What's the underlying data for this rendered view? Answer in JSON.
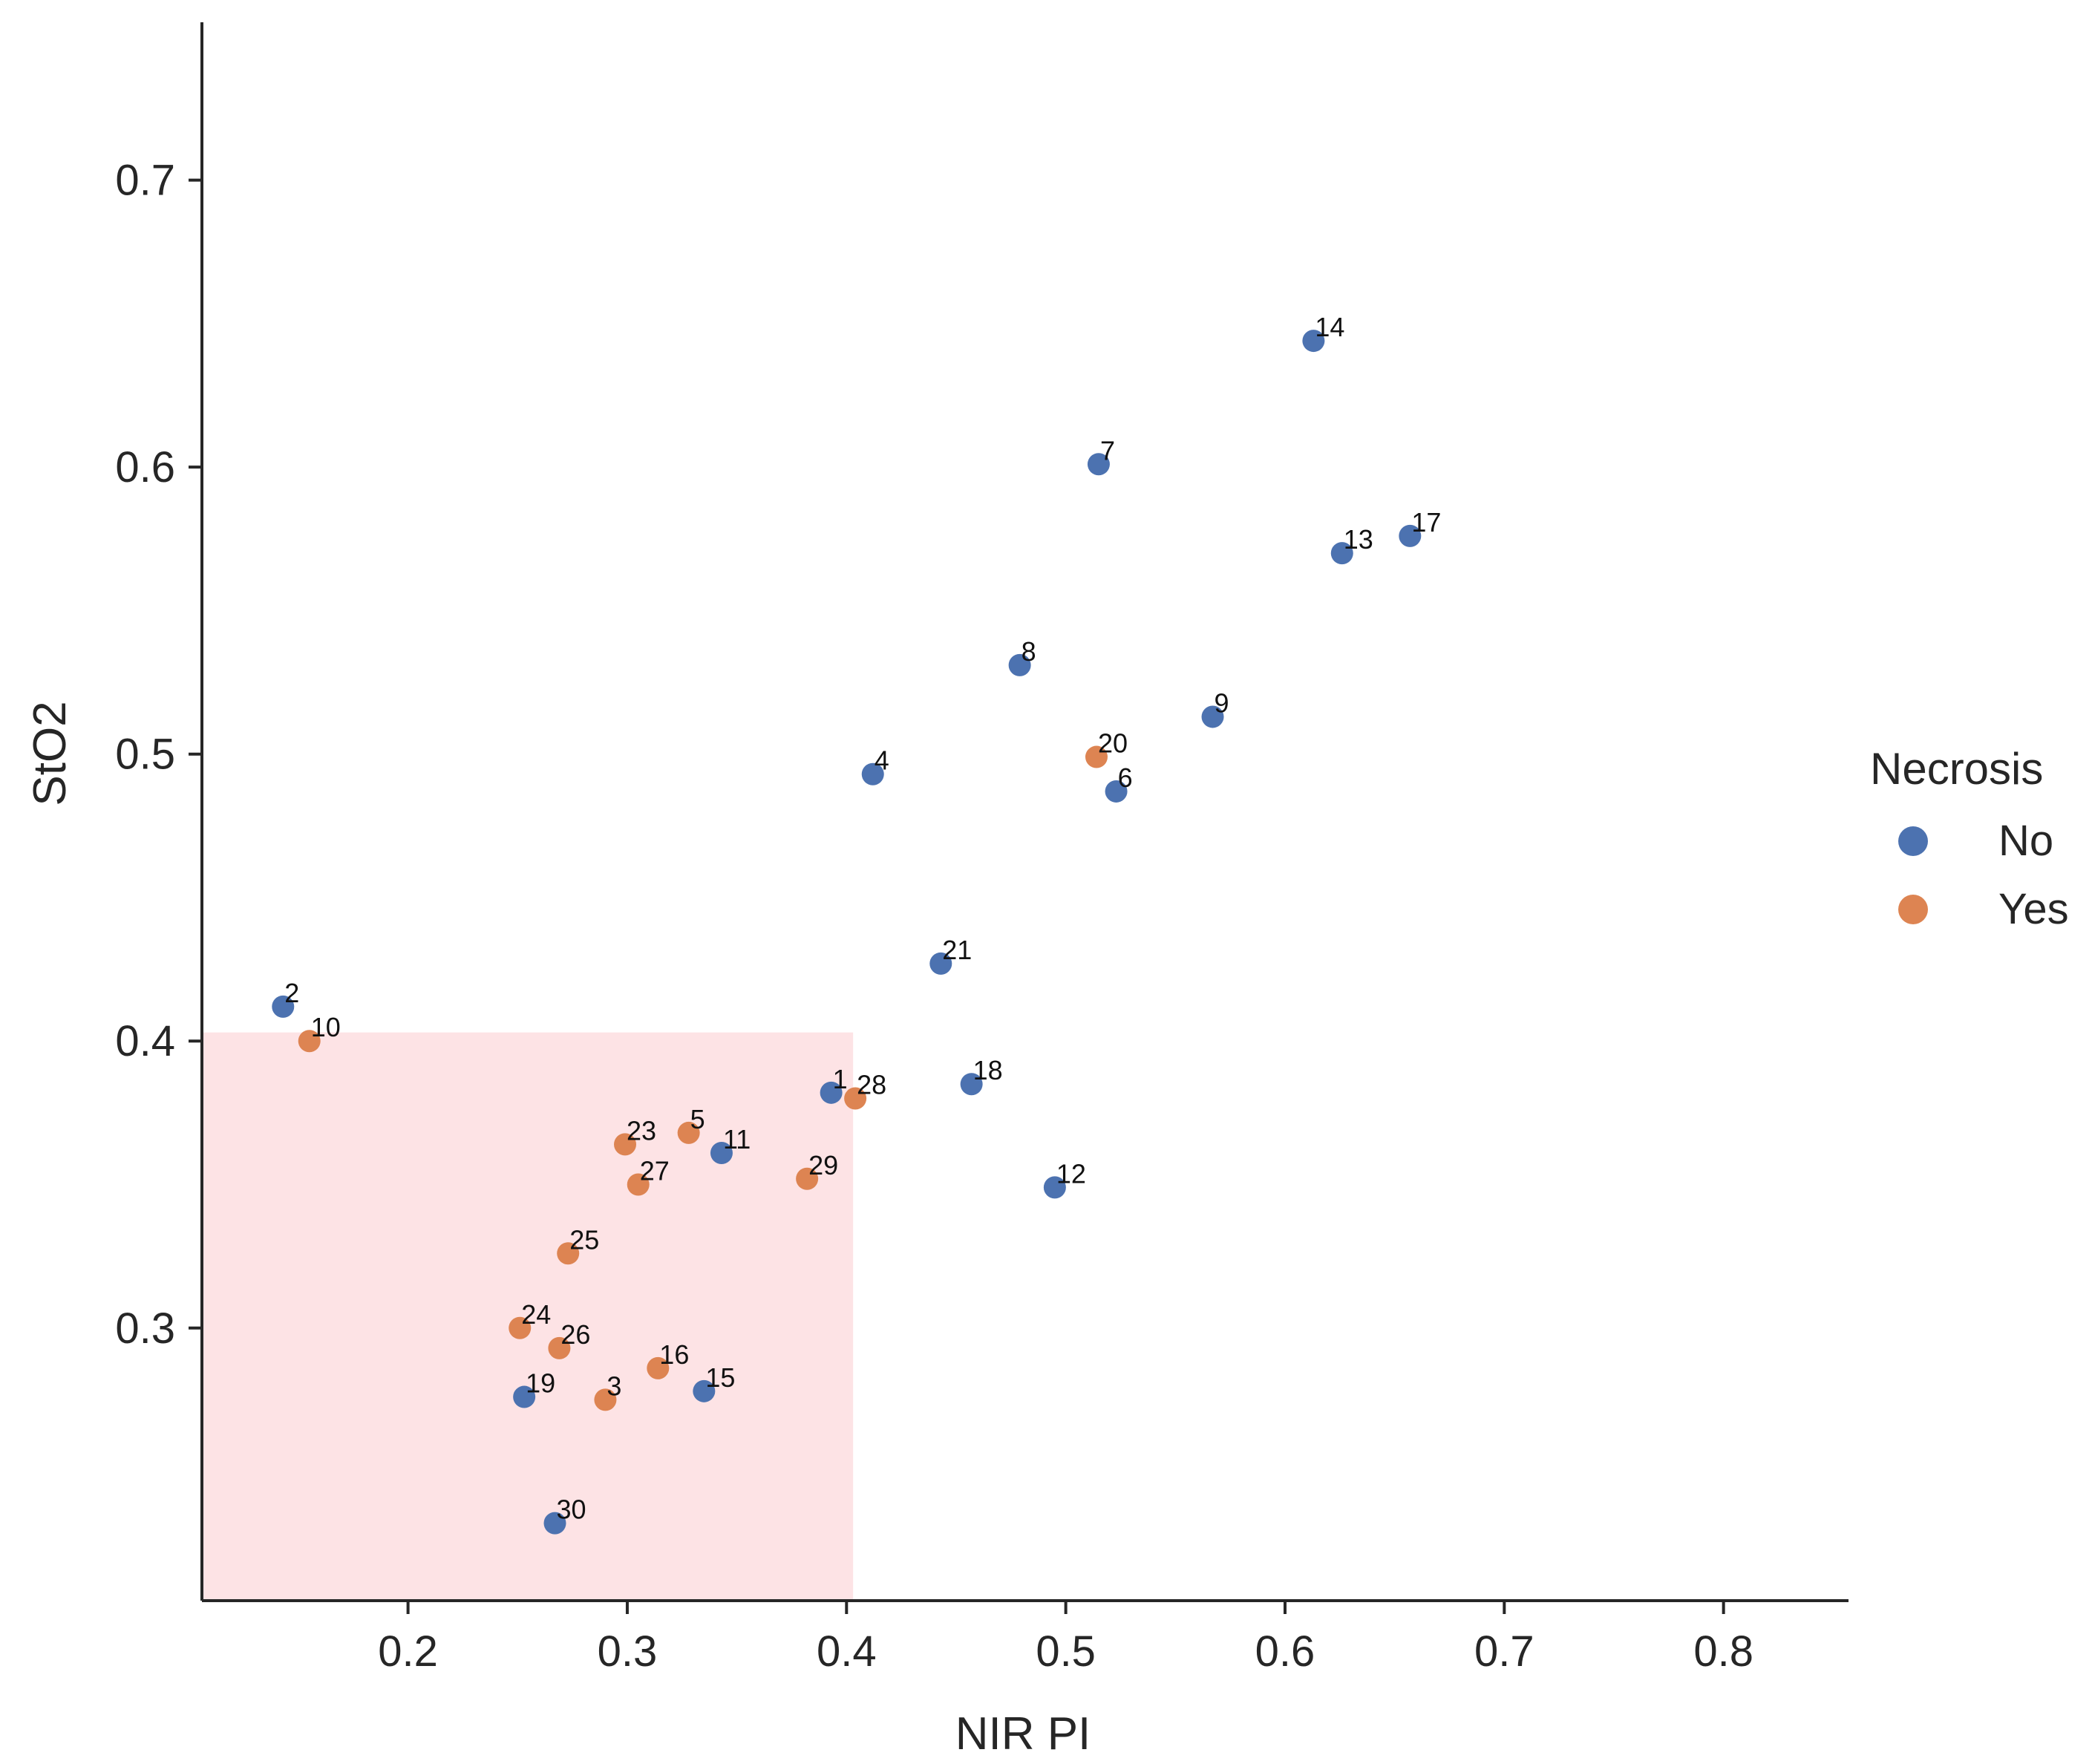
{
  "chart_data": {
    "type": "scatter",
    "title": "",
    "xlabel": "NIR PI",
    "ylabel": "StO2",
    "xlim": [
      0.106,
      0.857
    ],
    "ylim": [
      0.205,
      0.755
    ],
    "x_ticks": [
      "0.2",
      "0.3",
      "0.4",
      "0.5",
      "0.6",
      "0.7",
      "0.8"
    ],
    "y_ticks": [
      "0.3",
      "0.4",
      "0.5",
      "0.6",
      "0.7"
    ],
    "grid": false,
    "highlight_region": {
      "x": [
        0.106,
        0.403
      ],
      "y": [
        0.205,
        0.403
      ],
      "color": "#fde3e5"
    },
    "colors": {
      "No": "#4c72b0",
      "Yes": "#dd8452",
      "overlap": "#6b69a8"
    },
    "legend": {
      "title": "Necrosis",
      "placement": "right",
      "entries": [
        "No",
        "Yes"
      ]
    },
    "points": [
      {
        "id": "1",
        "x": 0.393,
        "y": 0.382,
        "necrosis": "No"
      },
      {
        "id": "2",
        "x": 0.143,
        "y": 0.412,
        "necrosis": "No"
      },
      {
        "id": "3",
        "x": 0.29,
        "y": 0.275,
        "necrosis": "Yes"
      },
      {
        "id": "4",
        "x": 0.412,
        "y": 0.493,
        "necrosis": "No"
      },
      {
        "id": "5",
        "x": 0.328,
        "y": 0.368,
        "necrosis": "Yes"
      },
      {
        "id": "6",
        "x": 0.523,
        "y": 0.487,
        "necrosis": "No"
      },
      {
        "id": "7",
        "x": 0.515,
        "y": 0.601,
        "necrosis": "No"
      },
      {
        "id": "8",
        "x": 0.479,
        "y": 0.531,
        "necrosis": "No"
      },
      {
        "id": "9",
        "x": 0.567,
        "y": 0.513,
        "necrosis": "No"
      },
      {
        "id": "10",
        "x": 0.155,
        "y": 0.4,
        "necrosis": "Yes"
      },
      {
        "id": "11",
        "x": 0.343,
        "y": 0.361,
        "necrosis": "No"
      },
      {
        "id": "12",
        "x": 0.495,
        "y": 0.349,
        "necrosis": "No"
      },
      {
        "id": "13",
        "x": 0.626,
        "y": 0.57,
        "necrosis": "No"
      },
      {
        "id": "14",
        "x": 0.613,
        "y": 0.644,
        "necrosis": "No"
      },
      {
        "id": "15",
        "x": 0.335,
        "y": 0.278,
        "necrosis": "No"
      },
      {
        "id": "16",
        "x": 0.314,
        "y": 0.286,
        "necrosis": "Yes"
      },
      {
        "id": "17",
        "x": 0.657,
        "y": 0.576,
        "necrosis": "No"
      },
      {
        "id": "18",
        "x": 0.457,
        "y": 0.385,
        "necrosis": "No"
      },
      {
        "id": "19",
        "x": 0.253,
        "y": 0.276,
        "necrosis": "No"
      },
      {
        "id": "20",
        "x": 0.514,
        "y": 0.499,
        "necrosis": "Yes"
      },
      {
        "id": "21",
        "x": 0.443,
        "y": 0.427,
        "necrosis": "No"
      },
      {
        "id": "23",
        "x": 0.299,
        "y": 0.364,
        "necrosis": "Yes"
      },
      {
        "id": "24",
        "x": 0.251,
        "y": 0.3,
        "necrosis": "Yes"
      },
      {
        "id": "25",
        "x": 0.273,
        "y": 0.326,
        "necrosis": "Yes"
      },
      {
        "id": "26",
        "x": 0.269,
        "y": 0.293,
        "necrosis": "Yes"
      },
      {
        "id": "27",
        "x": 0.305,
        "y": 0.35,
        "necrosis": "Yes"
      },
      {
        "id": "28",
        "x": 0.404,
        "y": 0.38,
        "necrosis": "Yes"
      },
      {
        "id": "29",
        "x": 0.382,
        "y": 0.352,
        "necrosis": "Yes"
      },
      {
        "id": "30",
        "x": 0.267,
        "y": 0.232,
        "necrosis": "No"
      }
    ]
  }
}
